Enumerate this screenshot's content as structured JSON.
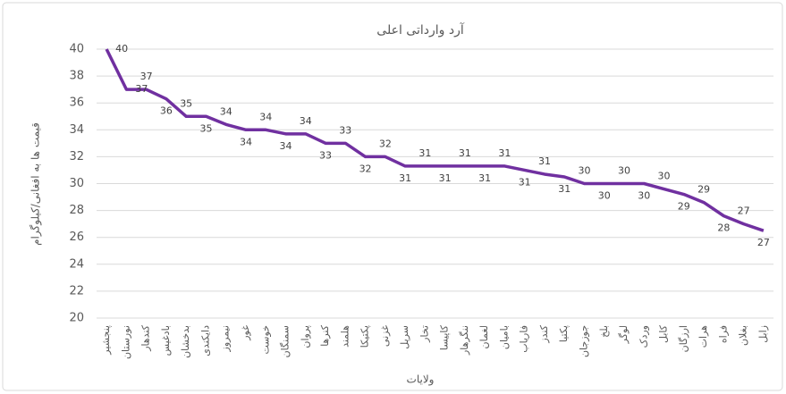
{
  "chart_data": {
    "type": "line",
    "title": "آرد وارداتی اعلی",
    "y_label": "قیمت ها به افغانی/کیلوگرام",
    "x_label": "ولایات",
    "categories": [
      "پنجشیر",
      "نورستان",
      "کندهار",
      "بادغیس",
      "بدخشان",
      "دایکندی",
      "نیمروز",
      "غور",
      "خوست",
      "سمنگان",
      "پروان",
      "کنرها",
      "هلمند",
      "پکتیکا",
      "غزنی",
      "سرپل",
      "تخار",
      "کاپیسا",
      "ننگرهار",
      "لغمان",
      "بامیان",
      "فاریاب",
      "کندز",
      "پکتیا",
      "جوزجان",
      "بلخ",
      "لوگر",
      "وردک",
      "کابل",
      "ارزگان",
      "هرات",
      "فراه",
      "بغلان",
      "زابل"
    ],
    "series": [
      {
        "name": "آرد وارداتی اعلی",
        "color": "#7030a0",
        "values": [
          40,
          37,
          37,
          36.3,
          35,
          35,
          34.4,
          34,
          34,
          33.7,
          33.7,
          33,
          33,
          32,
          32,
          31.3,
          31.3,
          31.3,
          31.3,
          31.3,
          31.3,
          31,
          30.7,
          30.5,
          30,
          30,
          30,
          30,
          29.6,
          29.2,
          28.6,
          27.6,
          27,
          26.5
        ],
        "value_labels": [
          "40",
          "37",
          "37",
          "36",
          "35",
          "35",
          "34",
          "34",
          "34",
          "34",
          "34",
          "33",
          "33",
          "32",
          "32",
          "31",
          "31",
          "31",
          "31",
          "31",
          "31",
          "31",
          "31",
          "31",
          "30",
          "30",
          "30",
          "30",
          "30",
          "29",
          "29",
          "28",
          "27",
          "27"
        ]
      }
    ],
    "ylim": [
      20,
      40
    ],
    "yticks": [
      20,
      22,
      24,
      26,
      28,
      30,
      32,
      34,
      36,
      38,
      40
    ],
    "grid": true
  }
}
